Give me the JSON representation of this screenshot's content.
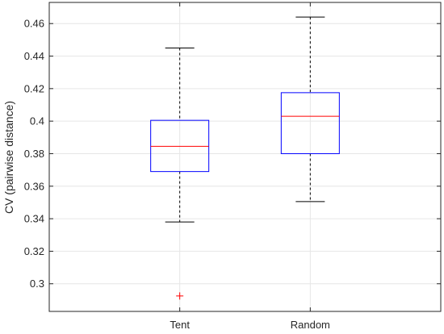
{
  "chart_data": {
    "type": "box",
    "categories": [
      "Tent",
      "Random"
    ],
    "ylabel": "CV (pairwise distance)",
    "xlabel": "",
    "ylim": [
      0.283,
      0.473
    ],
    "yticks": [
      0.3,
      0.32,
      0.34,
      0.36,
      0.38,
      0.4,
      0.42,
      0.44,
      0.46
    ],
    "ytick_labels": [
      "0.3",
      "0.32",
      "0.34",
      "0.36",
      "0.38",
      "0.4",
      "0.42",
      "0.44",
      "0.46"
    ],
    "grid": true,
    "boxes": [
      {
        "category": "Tent",
        "whisker_low": 0.338,
        "q1": 0.369,
        "median": 0.3845,
        "q3": 0.4005,
        "whisker_high": 0.445,
        "outliers": [
          0.2925
        ]
      },
      {
        "category": "Random",
        "whisker_low": 0.3505,
        "q1": 0.38,
        "median": 0.403,
        "q3": 0.4175,
        "whisker_high": 0.464,
        "outliers": []
      }
    ],
    "colors": {
      "box": "#0000ff",
      "median": "#ff0000",
      "whisker": "#000000",
      "outlier": "#ff0000",
      "grid": "#e6e6e6",
      "axis": "#262626"
    }
  }
}
